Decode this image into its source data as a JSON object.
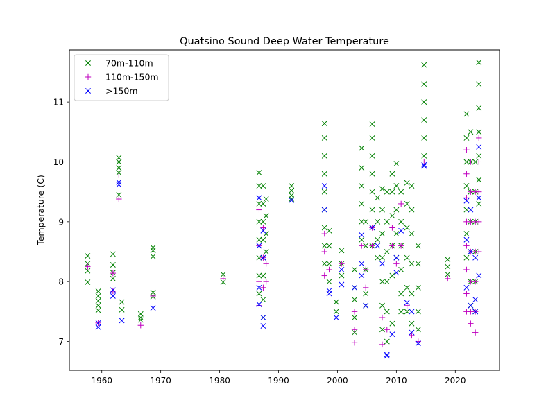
{
  "chart_data": {
    "type": "scatter",
    "title": "Quatsino Sound Deep Water Temperature",
    "xlabel": "",
    "ylabel": "Temperature (C)",
    "xlim": [
      1954.5,
      2027.5
    ],
    "ylim": [
      6.52,
      11.87
    ],
    "xticks": [
      1960,
      1970,
      1980,
      1990,
      2000,
      2010,
      2020
    ],
    "yticks": [
      7,
      8,
      9,
      10,
      11
    ],
    "grid": false,
    "legend_position": "top-left",
    "series": [
      {
        "name": "70m-110m",
        "marker": "x",
        "color": "#008000",
        "points": [
          [
            1957.6,
            8.43
          ],
          [
            1957.6,
            8.3
          ],
          [
            1957.6,
            8.18
          ],
          [
            1957.6,
            7.99
          ],
          [
            1959.4,
            7.84
          ],
          [
            1959.4,
            7.76
          ],
          [
            1959.4,
            7.68
          ],
          [
            1959.4,
            7.6
          ],
          [
            1959.4,
            7.52
          ],
          [
            1961.9,
            8.46
          ],
          [
            1961.9,
            8.28
          ],
          [
            1961.9,
            8.15
          ],
          [
            1961.9,
            8.05
          ],
          [
            1962.9,
            10.07
          ],
          [
            1962.9,
            10.0
          ],
          [
            1962.9,
            9.9
          ],
          [
            1962.9,
            9.82
          ],
          [
            1962.9,
            9.45
          ],
          [
            1963.4,
            7.66
          ],
          [
            1963.4,
            7.53
          ],
          [
            1966.6,
            7.46
          ],
          [
            1966.6,
            7.4
          ],
          [
            1966.6,
            7.36
          ],
          [
            1968.7,
            8.57
          ],
          [
            1968.7,
            8.52
          ],
          [
            1968.7,
            8.42
          ],
          [
            1968.7,
            7.82
          ],
          [
            1968.7,
            7.75
          ],
          [
            1980.6,
            8.12
          ],
          [
            1980.6,
            7.99
          ],
          [
            1986.7,
            9.82
          ],
          [
            1986.7,
            9.6
          ],
          [
            1986.7,
            9.3
          ],
          [
            1986.7,
            9.0
          ],
          [
            1986.7,
            8.7
          ],
          [
            1986.7,
            8.4
          ],
          [
            1986.7,
            8.1
          ],
          [
            1986.7,
            7.8
          ],
          [
            1987.4,
            9.6
          ],
          [
            1987.4,
            9.3
          ],
          [
            1987.4,
            9.0
          ],
          [
            1987.4,
            8.7
          ],
          [
            1987.4,
            8.4
          ],
          [
            1987.4,
            8.1
          ],
          [
            1987.4,
            7.7
          ],
          [
            1987.4,
            7.4
          ],
          [
            1987.9,
            9.38
          ],
          [
            1987.9,
            9.1
          ],
          [
            1987.9,
            8.8
          ],
          [
            1987.9,
            8.5
          ],
          [
            1992.2,
            9.6
          ],
          [
            1992.2,
            9.52
          ],
          [
            1992.2,
            9.44
          ],
          [
            1992.2,
            9.38
          ],
          [
            1997.8,
            10.64
          ],
          [
            1997.8,
            10.4
          ],
          [
            1997.8,
            10.1
          ],
          [
            1997.8,
            9.8
          ],
          [
            1997.8,
            9.5
          ],
          [
            1997.8,
            9.2
          ],
          [
            1997.8,
            8.9
          ],
          [
            1997.8,
            8.6
          ],
          [
            1997.8,
            8.3
          ],
          [
            1998.6,
            8.85
          ],
          [
            1998.6,
            8.6
          ],
          [
            1998.6,
            8.3
          ],
          [
            1998.6,
            8.0
          ],
          [
            1999.8,
            7.66
          ],
          [
            1999.8,
            7.5
          ],
          [
            2000.7,
            8.52
          ],
          [
            2000.7,
            8.3
          ],
          [
            2000.7,
            8.1
          ],
          [
            2002.9,
            8.2
          ],
          [
            2002.9,
            7.9
          ],
          [
            2002.9,
            7.7
          ],
          [
            2002.9,
            7.4
          ],
          [
            2002.9,
            7.15
          ],
          [
            2004.1,
            10.23
          ],
          [
            2004.1,
            9.9
          ],
          [
            2004.1,
            9.6
          ],
          [
            2004.1,
            9.3
          ],
          [
            2004.1,
            9.0
          ],
          [
            2004.1,
            8.7
          ],
          [
            2004.8,
            9.0
          ],
          [
            2004.8,
            8.6
          ],
          [
            2004.8,
            8.2
          ],
          [
            2004.8,
            7.8
          ],
          [
            2004.8,
            7.6
          ],
          [
            2005.9,
            10.63
          ],
          [
            2005.9,
            10.4
          ],
          [
            2005.9,
            10.1
          ],
          [
            2005.9,
            9.8
          ],
          [
            2005.9,
            9.5
          ],
          [
            2005.9,
            9.2
          ],
          [
            2005.9,
            8.9
          ],
          [
            2005.9,
            8.6
          ],
          [
            2006.8,
            9.4
          ],
          [
            2006.8,
            9.0
          ],
          [
            2006.8,
            8.7
          ],
          [
            2006.8,
            8.4
          ],
          [
            2007.6,
            9.55
          ],
          [
            2007.6,
            9.2
          ],
          [
            2007.6,
            8.8
          ],
          [
            2007.6,
            8.4
          ],
          [
            2007.6,
            8.0
          ],
          [
            2007.6,
            7.6
          ],
          [
            2007.6,
            7.2
          ],
          [
            2008.4,
            9.5
          ],
          [
            2008.4,
            9.0
          ],
          [
            2008.4,
            8.5
          ],
          [
            2008.4,
            8.0
          ],
          [
            2008.4,
            7.5
          ],
          [
            2008.4,
            7.0
          ],
          [
            2009.3,
            9.8
          ],
          [
            2009.3,
            9.5
          ],
          [
            2009.3,
            9.1
          ],
          [
            2009.3,
            8.6
          ],
          [
            2009.3,
            8.1
          ],
          [
            2009.3,
            7.3
          ],
          [
            2010.0,
            9.97
          ],
          [
            2010.0,
            9.6
          ],
          [
            2010.0,
            9.2
          ],
          [
            2010.0,
            8.8
          ],
          [
            2010.0,
            8.4
          ],
          [
            2010.8,
            9.5
          ],
          [
            2010.8,
            9.0
          ],
          [
            2010.8,
            8.6
          ],
          [
            2010.8,
            8.2
          ],
          [
            2010.8,
            7.8
          ],
          [
            2010.8,
            7.5
          ],
          [
            2011.8,
            9.65
          ],
          [
            2011.8,
            9.3
          ],
          [
            2011.8,
            8.9
          ],
          [
            2011.8,
            8.4
          ],
          [
            2011.8,
            7.9
          ],
          [
            2011.8,
            7.5
          ],
          [
            2012.6,
            9.6
          ],
          [
            2012.6,
            9.2
          ],
          [
            2012.6,
            8.8
          ],
          [
            2012.6,
            8.3
          ],
          [
            2012.6,
            7.8
          ],
          [
            2012.6,
            7.3
          ],
          [
            2013.7,
            8.6
          ],
          [
            2013.7,
            8.3
          ],
          [
            2013.7,
            7.9
          ],
          [
            2013.7,
            7.5
          ],
          [
            2013.7,
            7.2
          ],
          [
            2014.7,
            11.62
          ],
          [
            2014.7,
            11.3
          ],
          [
            2014.7,
            11.0
          ],
          [
            2014.7,
            10.7
          ],
          [
            2014.7,
            10.4
          ],
          [
            2014.7,
            10.1
          ],
          [
            2018.7,
            8.37
          ],
          [
            2018.7,
            8.25
          ],
          [
            2018.7,
            8.12
          ],
          [
            2021.9,
            10.8
          ],
          [
            2021.9,
            10.4
          ],
          [
            2021.9,
            10.0
          ],
          [
            2021.9,
            9.6
          ],
          [
            2021.9,
            9.2
          ],
          [
            2021.9,
            8.8
          ],
          [
            2021.9,
            8.4
          ],
          [
            2022.6,
            10.5
          ],
          [
            2022.6,
            10.0
          ],
          [
            2022.6,
            9.5
          ],
          [
            2022.6,
            9.0
          ],
          [
            2022.6,
            8.5
          ],
          [
            2022.6,
            8.0
          ],
          [
            2022.6,
            7.6
          ],
          [
            2023.4,
            10.0
          ],
          [
            2023.4,
            9.5
          ],
          [
            2023.4,
            9.0
          ],
          [
            2023.4,
            8.5
          ],
          [
            2023.4,
            8.0
          ],
          [
            2023.4,
            7.5
          ],
          [
            2024.0,
            11.66
          ],
          [
            2024.0,
            11.3
          ],
          [
            2024.0,
            10.9
          ],
          [
            2024.0,
            10.5
          ],
          [
            2024.0,
            10.1
          ],
          [
            2024.0,
            9.7
          ],
          [
            2024.0,
            9.3
          ]
        ]
      },
      {
        "name": "110m-150m",
        "marker": "+",
        "color": "#bf00bf",
        "points": [
          [
            1957.6,
            8.25
          ],
          [
            1959.4,
            7.31
          ],
          [
            1961.9,
            8.14
          ],
          [
            1961.9,
            7.84
          ],
          [
            1962.9,
            9.78
          ],
          [
            1962.9,
            9.38
          ],
          [
            1966.6,
            7.27
          ],
          [
            1968.7,
            7.76
          ],
          [
            1980.6,
            8.05
          ],
          [
            1986.7,
            9.2
          ],
          [
            1986.7,
            8.6
          ],
          [
            1986.7,
            8.0
          ],
          [
            1986.7,
            7.6
          ],
          [
            1987.4,
            8.9
          ],
          [
            1987.4,
            8.4
          ],
          [
            1987.4,
            7.9
          ],
          [
            1987.9,
            8.3
          ],
          [
            1987.9,
            8.0
          ],
          [
            1997.8,
            8.8
          ],
          [
            1997.8,
            8.5
          ],
          [
            1997.8,
            8.1
          ],
          [
            1998.6,
            8.2
          ],
          [
            2000.7,
            8.3
          ],
          [
            2002.9,
            7.5
          ],
          [
            2002.9,
            7.2
          ],
          [
            2002.9,
            6.98
          ],
          [
            2004.1,
            8.6
          ],
          [
            2004.8,
            8.2
          ],
          [
            2004.8,
            7.9
          ],
          [
            2005.9,
            8.9
          ],
          [
            2005.9,
            8.6
          ],
          [
            2007.6,
            7.4
          ],
          [
            2007.6,
            6.95
          ],
          [
            2008.4,
            7.2
          ],
          [
            2009.3,
            8.9
          ],
          [
            2009.3,
            8.6
          ],
          [
            2010.0,
            8.3
          ],
          [
            2010.8,
            9.3
          ],
          [
            2010.8,
            8.6
          ],
          [
            2011.8,
            7.6
          ],
          [
            2012.6,
            7.1
          ],
          [
            2013.7,
            7.0
          ],
          [
            2014.7,
            10.0
          ],
          [
            2018.7,
            8.05
          ],
          [
            2021.9,
            10.2
          ],
          [
            2021.9,
            9.8
          ],
          [
            2021.9,
            9.4
          ],
          [
            2021.9,
            9.0
          ],
          [
            2021.9,
            8.6
          ],
          [
            2021.9,
            8.2
          ],
          [
            2021.9,
            7.8
          ],
          [
            2021.9,
            7.5
          ],
          [
            2022.6,
            10.0
          ],
          [
            2022.6,
            9.5
          ],
          [
            2022.6,
            9.0
          ],
          [
            2022.6,
            8.5
          ],
          [
            2022.6,
            8.0
          ],
          [
            2022.6,
            7.5
          ],
          [
            2022.6,
            7.3
          ],
          [
            2023.4,
            9.5
          ],
          [
            2023.4,
            9.0
          ],
          [
            2023.4,
            8.5
          ],
          [
            2023.4,
            8.0
          ],
          [
            2023.4,
            7.5
          ],
          [
            2023.4,
            7.15
          ],
          [
            2024.0,
            10.4
          ],
          [
            2024.0,
            10.0
          ],
          [
            2024.0,
            9.5
          ],
          [
            2024.0,
            9.0
          ],
          [
            2024.0,
            8.5
          ]
        ]
      },
      {
        "name": ">150m",
        "marker": "x",
        "color": "#0000ff",
        "points": [
          [
            1959.4,
            7.31
          ],
          [
            1959.4,
            7.24
          ],
          [
            1961.9,
            7.86
          ],
          [
            1961.9,
            7.76
          ],
          [
            1962.9,
            9.66
          ],
          [
            1962.9,
            9.62
          ],
          [
            1963.4,
            7.35
          ],
          [
            1968.7,
            7.56
          ],
          [
            1986.7,
            9.4
          ],
          [
            1986.7,
            8.6
          ],
          [
            1986.7,
            7.9
          ],
          [
            1986.7,
            7.62
          ],
          [
            1987.4,
            8.85
          ],
          [
            1987.4,
            8.4
          ],
          [
            1987.4,
            7.4
          ],
          [
            1987.4,
            7.26
          ],
          [
            1992.2,
            9.36
          ],
          [
            1997.8,
            9.6
          ],
          [
            1997.8,
            9.2
          ],
          [
            1998.6,
            7.85
          ],
          [
            1998.6,
            7.8
          ],
          [
            1999.8,
            7.4
          ],
          [
            2000.7,
            8.2
          ],
          [
            2000.7,
            7.95
          ],
          [
            2002.9,
            7.9
          ],
          [
            2004.1,
            8.78
          ],
          [
            2004.1,
            8.3
          ],
          [
            2004.1,
            8.1
          ],
          [
            2004.8,
            7.6
          ],
          [
            2005.9,
            8.9
          ],
          [
            2006.8,
            8.6
          ],
          [
            2007.6,
            8.3
          ],
          [
            2008.4,
            6.78
          ],
          [
            2008.4,
            6.76
          ],
          [
            2009.3,
            7.12
          ],
          [
            2010.0,
            8.4
          ],
          [
            2010.0,
            8.15
          ],
          [
            2010.8,
            8.85
          ],
          [
            2011.8,
            7.65
          ],
          [
            2012.6,
            7.5
          ],
          [
            2012.6,
            7.15
          ],
          [
            2013.7,
            6.97
          ],
          [
            2014.7,
            9.95
          ],
          [
            2014.7,
            9.93
          ],
          [
            2021.9,
            9.35
          ],
          [
            2021.9,
            8.7
          ],
          [
            2021.9,
            7.9
          ],
          [
            2022.6,
            9.2
          ],
          [
            2022.6,
            8.5
          ],
          [
            2022.6,
            7.6
          ],
          [
            2023.4,
            8.4
          ],
          [
            2023.4,
            7.7
          ],
          [
            2023.4,
            7.5
          ],
          [
            2024.0,
            10.25
          ],
          [
            2024.0,
            9.4
          ],
          [
            2024.0,
            8.1
          ]
        ]
      }
    ]
  }
}
